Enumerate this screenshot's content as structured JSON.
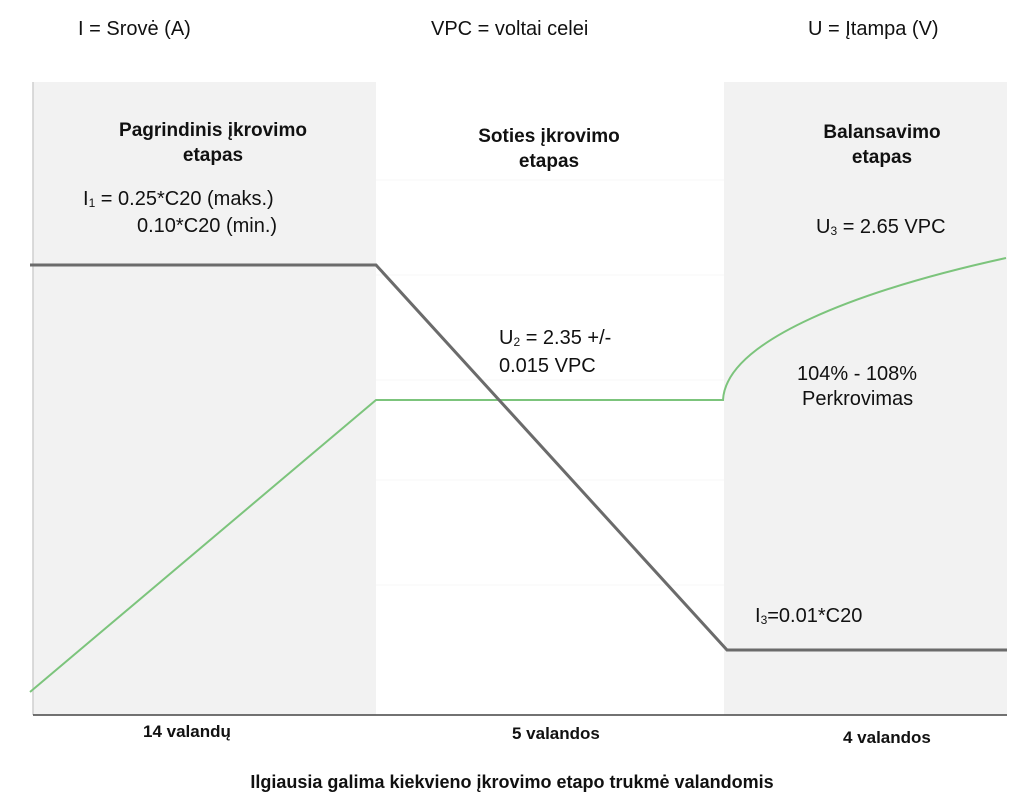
{
  "legend": {
    "current": "I = Srovė (A)",
    "vpc": "VPC = voltai celei",
    "voltage": "U = Įtampa (V)"
  },
  "stages": [
    {
      "title_line1": "Pagrindinis įkrovimo",
      "title_line2": "etapas",
      "duration": "14 valandų"
    },
    {
      "title_line1": "Soties įkrovimo",
      "title_line2": "etapas",
      "duration": "5 valandos"
    },
    {
      "title_line1": "Balansavimo",
      "title_line2": "etapas",
      "duration": "4 valandos"
    }
  ],
  "annotations": {
    "i1_prefix": "I",
    "i1_sub": "1",
    "i1_rest": " = 0.25*C20 (maks.)",
    "i1_min": "0.10*C20 (min.)",
    "u2_prefix": "U",
    "u2_sub": "2",
    "u2_rest": " = 2.35 +/-",
    "u2_line2": "0.015 VPC",
    "u3_prefix": "U",
    "u3_sub": "3",
    "u3_rest": " = 2.65 VPC",
    "overcharge_line1": "104% - 108%",
    "overcharge_line2": "Perkrovimas",
    "i3_prefix": "I",
    "i3_sub": "3",
    "i3_rest": "=0.01*C20"
  },
  "caption": "Ilgiausia galima kiekvieno įkrovimo etapo trukmė valandomis",
  "colors": {
    "current_line": "#6b6b6b",
    "voltage_line": "#7cc47c",
    "shaded_stage": "#f2f2f2",
    "axis": "#444444"
  }
}
